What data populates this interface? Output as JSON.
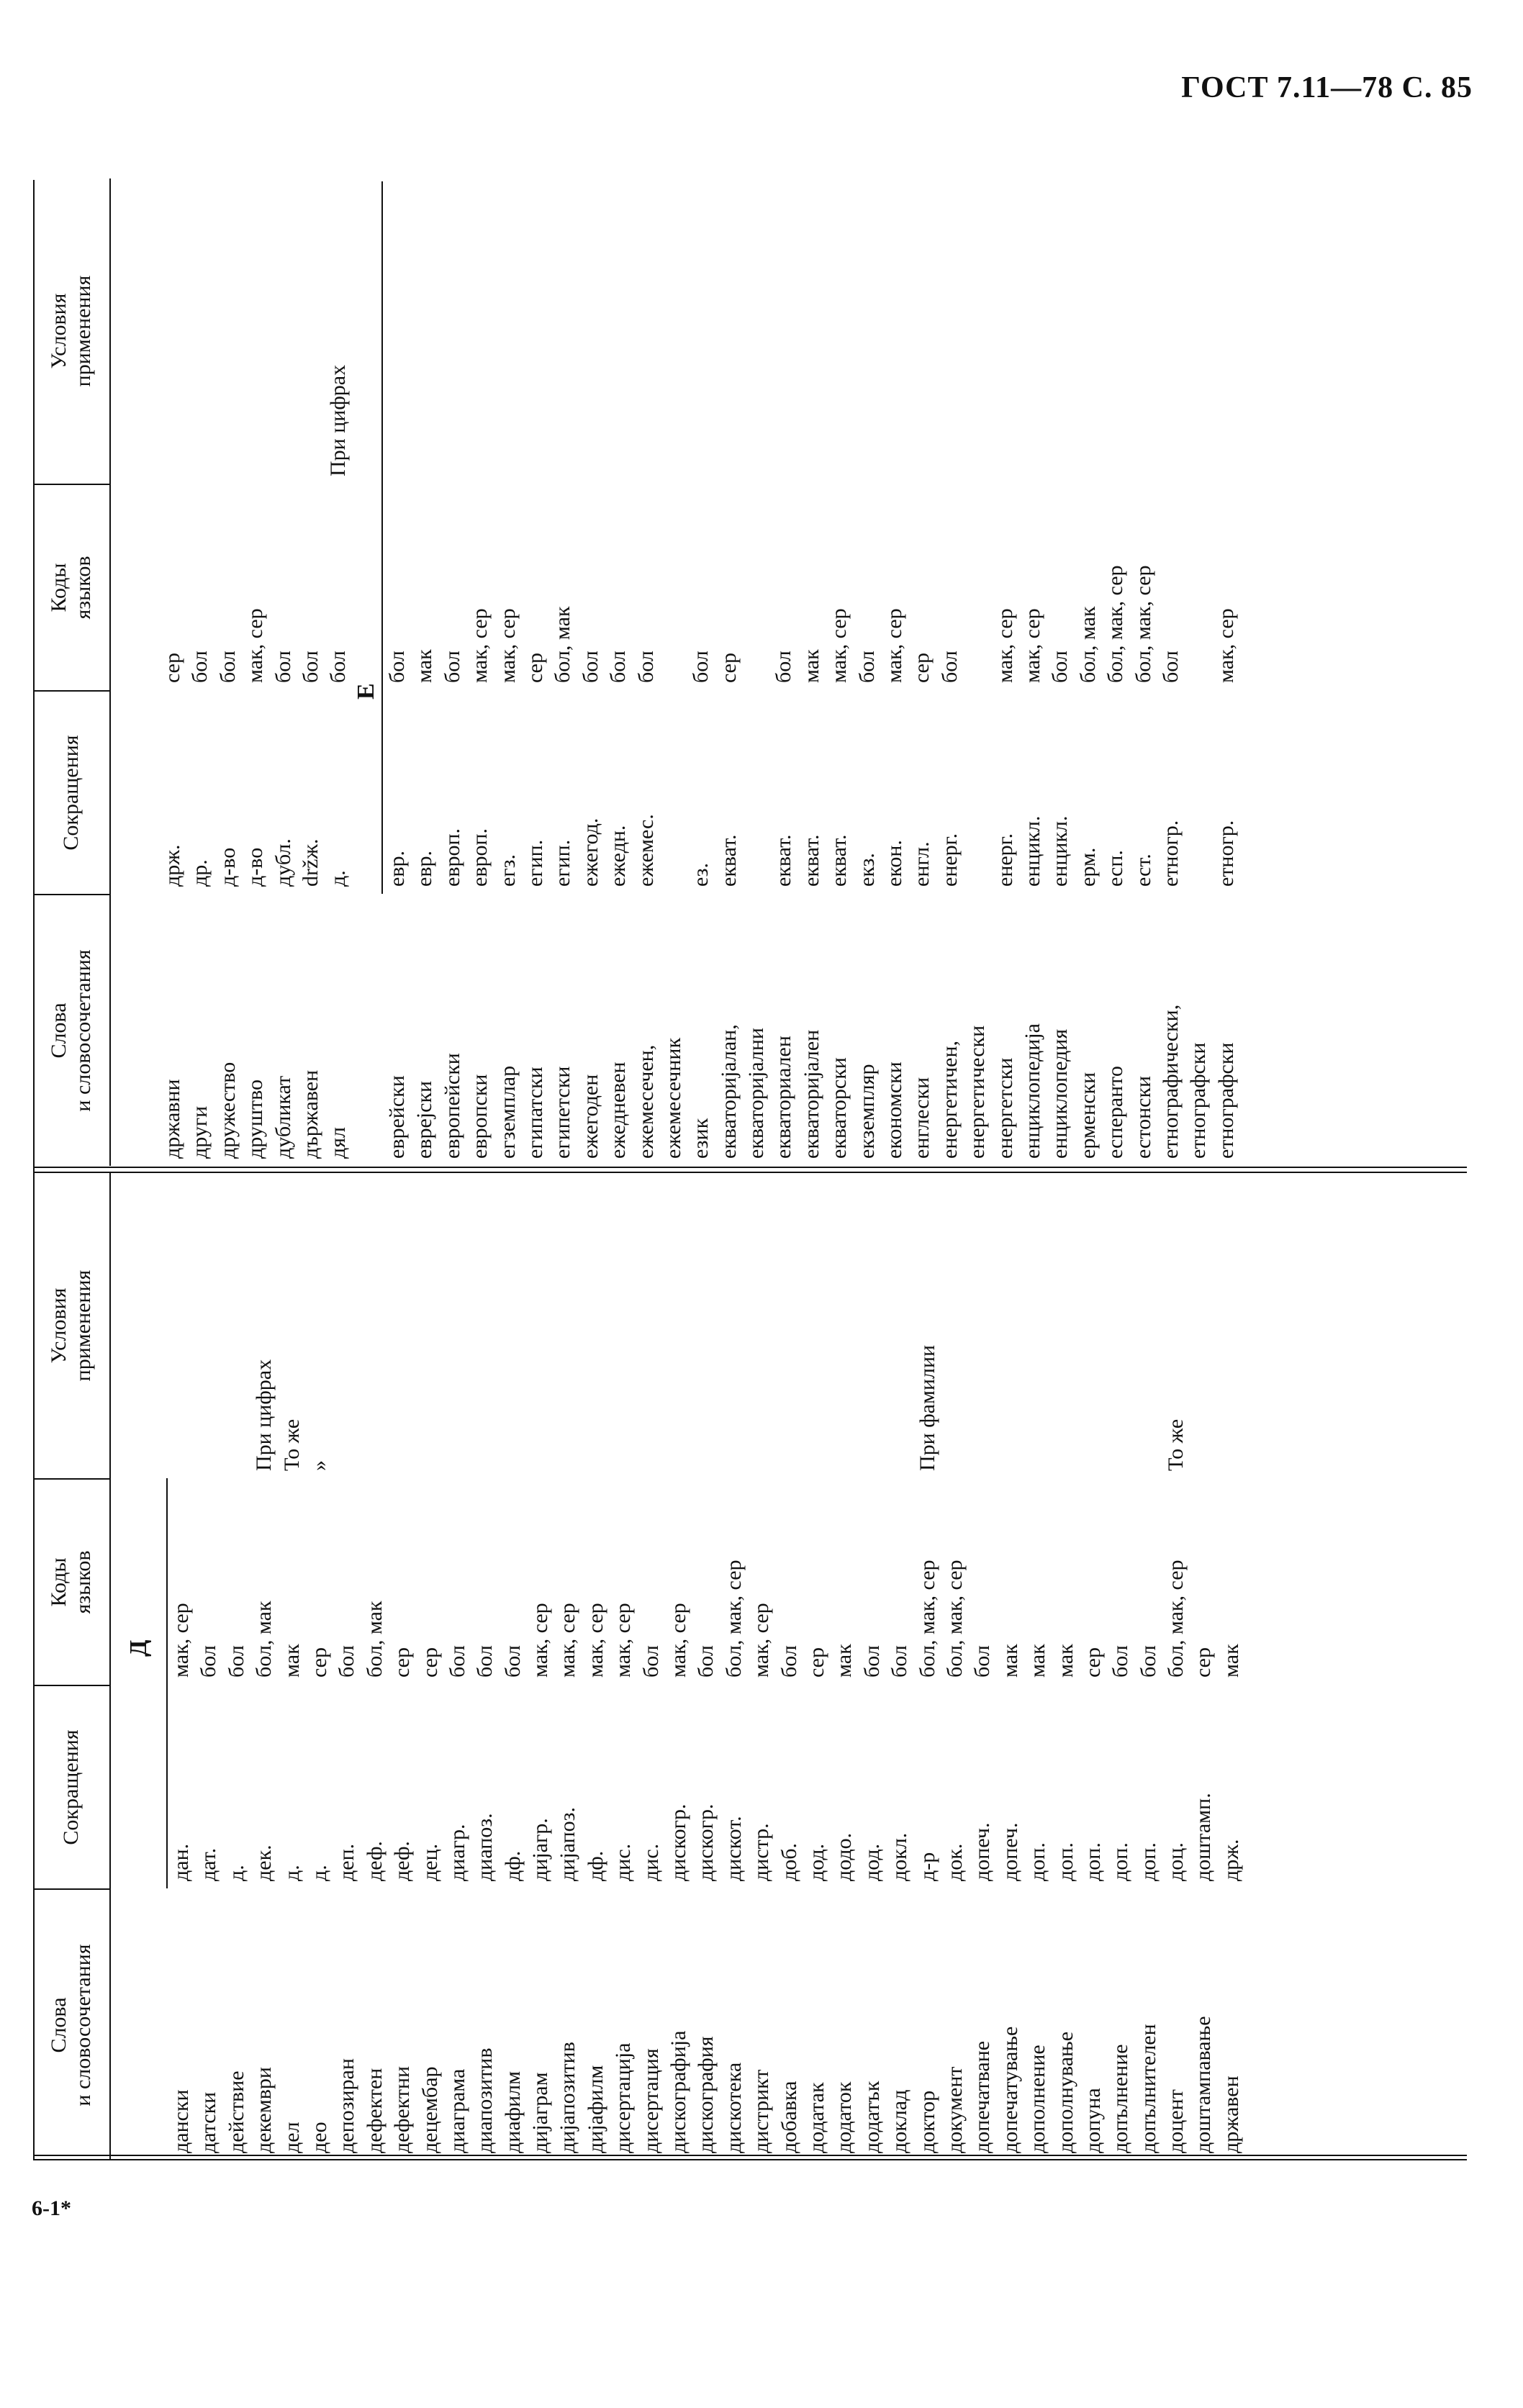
{
  "page": {
    "header": "ГОСТ 7.11—78 С. 85",
    "footer": "6-1*"
  },
  "table": {
    "columns": [
      "Слова\nи словосочетания",
      "Сокращения",
      "Коды\nязыков",
      "Условия\nприменения"
    ]
  },
  "left_section": {
    "letter": "Д",
    "rows": [
      {
        "word": "дански",
        "abbr": "дан.",
        "codes": "мак, сер",
        "cond": ""
      },
      {
        "word": "датски",
        "abbr": "дат.",
        "codes": "бол",
        "cond": ""
      },
      {
        "word": "действие",
        "abbr": "д.",
        "codes": "бол",
        "cond": ""
      },
      {
        "word": "декември",
        "abbr": "дек.",
        "codes": "бол, мак",
        "cond": "При цифрах"
      },
      {
        "word": "дел",
        "abbr": "д.",
        "codes": "мак",
        "cond": "То же"
      },
      {
        "word": "део",
        "abbr": "д.",
        "codes": "сер",
        "cond": "»"
      },
      {
        "word": "депозиран",
        "abbr": "деп.",
        "codes": "бол",
        "cond": ""
      },
      {
        "word": "дефектен",
        "abbr": "деф.",
        "codes": "бол, мак",
        "cond": ""
      },
      {
        "word": "дефектни",
        "abbr": "деф.",
        "codes": "сер",
        "cond": ""
      },
      {
        "word": "децембар",
        "abbr": "дец.",
        "codes": "сер",
        "cond": ""
      },
      {
        "word": "диаграма",
        "abbr": "диагр.",
        "codes": "бол",
        "cond": ""
      },
      {
        "word": "диапозитив",
        "abbr": "диапоз.",
        "codes": "бол",
        "cond": ""
      },
      {
        "word": "диафилм",
        "abbr": "дф.",
        "codes": "бол",
        "cond": ""
      },
      {
        "word": "дијаграм",
        "abbr": "дијагр.",
        "codes": "мак, сер",
        "cond": ""
      },
      {
        "word": "дијапозитив",
        "abbr": "дијапоз.",
        "codes": "мак, сер",
        "cond": ""
      },
      {
        "word": "дијафилм",
        "abbr": "дф.",
        "codes": "мак, сер",
        "cond": ""
      },
      {
        "word": "дисертација",
        "abbr": "дис.",
        "codes": "мак, сер",
        "cond": ""
      },
      {
        "word": "дисертация",
        "abbr": "дис.",
        "codes": "бол",
        "cond": ""
      },
      {
        "word": "дискографија",
        "abbr": "дискогр.",
        "codes": "мак, сер",
        "cond": ""
      },
      {
        "word": "дискография",
        "abbr": "дискогр.",
        "codes": "бол",
        "cond": ""
      },
      {
        "word": "дискотека",
        "abbr": "дискот.",
        "codes": "бол, мак, сер",
        "cond": ""
      },
      {
        "word": "дистрикт",
        "abbr": "дистр.",
        "codes": "мак, сер",
        "cond": ""
      },
      {
        "word": "добавка",
        "abbr": "доб.",
        "codes": "бол",
        "cond": ""
      },
      {
        "word": "додатак",
        "abbr": "дод.",
        "codes": "сер",
        "cond": ""
      },
      {
        "word": "додаток",
        "abbr": "додо.",
        "codes": "мак",
        "cond": ""
      },
      {
        "word": "додатък",
        "abbr": "дод.",
        "codes": "бол",
        "cond": ""
      },
      {
        "word": "доклад",
        "abbr": "докл.",
        "codes": "бол",
        "cond": ""
      },
      {
        "word": "доктор",
        "abbr": "д-р",
        "codes": "бол, мак, сер",
        "cond": "При фамилии"
      },
      {
        "word": "документ",
        "abbr": "док.",
        "codes": "бол, мак, сер",
        "cond": ""
      },
      {
        "word": "допечатване",
        "abbr": "допеч.",
        "codes": "бол",
        "cond": ""
      },
      {
        "word": "допечатување",
        "abbr": "допеч.",
        "codes": "мак",
        "cond": ""
      },
      {
        "word": "дополнение",
        "abbr": "доп.",
        "codes": "мак",
        "cond": ""
      },
      {
        "word": "дополнување",
        "abbr": "доп.",
        "codes": "мак",
        "cond": ""
      },
      {
        "word": "допуна",
        "abbr": "доп.",
        "codes": "сер",
        "cond": ""
      },
      {
        "word": "допълнение",
        "abbr": "доп.",
        "codes": "бол",
        "cond": ""
      },
      {
        "word": "допълнителен",
        "abbr": "доп.",
        "codes": "бол",
        "cond": ""
      },
      {
        "word": "доцент",
        "abbr": "доц.",
        "codes": "бол, мак, сер",
        "cond": "То же"
      },
      {
        "word": "доштампавање",
        "abbr": "доштамп.",
        "codes": "сер",
        "cond": ""
      },
      {
        "word": "државен",
        "abbr": "држ.",
        "codes": "мак",
        "cond": ""
      }
    ]
  },
  "right_section": {
    "letter": "Е",
    "top_rows": [
      {
        "word": "државни",
        "abbr": "држ.",
        "codes": "сер",
        "cond": ""
      },
      {
        "word": "други",
        "abbr": "др.",
        "codes": "бол",
        "cond": ""
      },
      {
        "word": "дружество",
        "abbr": "д-во",
        "codes": "бол",
        "cond": ""
      },
      {
        "word": "друштво",
        "abbr": "д-во",
        "codes": "мак, сер",
        "cond": ""
      },
      {
        "word": "дубликат",
        "abbr": "дубл.",
        "codes": "бол",
        "cond": ""
      },
      {
        "word": "държавен",
        "abbr": "držж.",
        "codes": "бол",
        "cond": ""
      },
      {
        "word": "дял",
        "abbr": "д.",
        "codes": "бол",
        "cond": "При цифрах"
      }
    ],
    "rows": [
      {
        "word": "еврейски",
        "abbr": "евр.",
        "codes": "бол"
      },
      {
        "word": "еврејски",
        "abbr": "евр.",
        "codes": "мак"
      },
      {
        "word": "европейски",
        "abbr": "европ.",
        "codes": "бол"
      },
      {
        "word": "европски",
        "abbr": "европ.",
        "codes": "мак, сер"
      },
      {
        "word": "егземплар",
        "abbr": "егз.",
        "codes": "мак, сер"
      },
      {
        "word": "египатски",
        "abbr": "егип.",
        "codes": "сер"
      },
      {
        "word": "египетски",
        "abbr": "егип.",
        "codes": "бол, мак"
      },
      {
        "word": "ежегоден",
        "abbr": "ежегод.",
        "codes": "бол"
      },
      {
        "word": "ежедневен",
        "abbr": "ежедн.",
        "codes": "бол"
      },
      {
        "word": "ежемесечен,",
        "abbr": "ежемес.",
        "codes": "бол"
      },
      {
        "word": "ежемесечник",
        "abbr": "",
        "codes": ""
      },
      {
        "word": "език",
        "abbr": "ез.",
        "codes": "бол"
      },
      {
        "word": "екваторијалан,",
        "abbr": "екват.",
        "codes": "сер"
      },
      {
        "word": "екваторијални",
        "abbr": "",
        "codes": ""
      },
      {
        "word": "екваториален",
        "abbr": "екват.",
        "codes": "бол"
      },
      {
        "word": "екваторијален",
        "abbr": "екват.",
        "codes": "мак"
      },
      {
        "word": "екваторски",
        "abbr": "екват.",
        "codes": "мак, сер"
      },
      {
        "word": "екземпляр",
        "abbr": "екз.",
        "codes": "бол"
      },
      {
        "word": "економски",
        "abbr": "екон.",
        "codes": "мак, сер"
      },
      {
        "word": "енглески",
        "abbr": "енгл.",
        "codes": "сер"
      },
      {
        "word": "енергетичен,",
        "abbr": "енерг.",
        "codes": "бол"
      },
      {
        "word": "енергетически",
        "abbr": "",
        "codes": ""
      },
      {
        "word": "енергетски",
        "abbr": "енерг.",
        "codes": "мак, сер"
      },
      {
        "word": "енциклопедија",
        "abbr": "енцикл.",
        "codes": "мак, сер"
      },
      {
        "word": "енциклопедия",
        "abbr": "енцикл.",
        "codes": "бол"
      },
      {
        "word": "ерменски",
        "abbr": "ерм.",
        "codes": "бол, мак"
      },
      {
        "word": "есперанто",
        "abbr": "есп.",
        "codes": "бол, мак, сер"
      },
      {
        "word": "естонски",
        "abbr": "ест.",
        "codes": "бол, мак, сер"
      },
      {
        "word": "етнографически,",
        "abbr": "етногр.",
        "codes": "бол"
      },
      {
        "word": "етнографски",
        "abbr": "",
        "codes": ""
      },
      {
        "word": "етнографски",
        "abbr": "етногр.",
        "codes": "мак, сер"
      }
    ]
  }
}
